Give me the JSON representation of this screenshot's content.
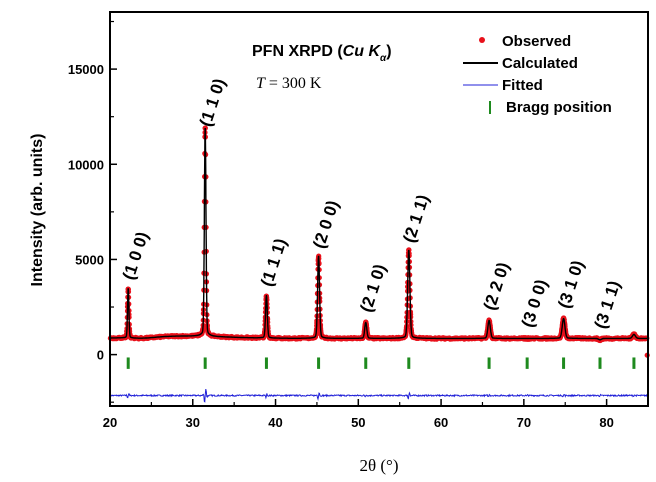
{
  "chart_data": {
    "type": "scatter",
    "title": "PFN XRPD (Cu Kα)",
    "title_main": "PFN XRPD (",
    "title_cu": "Cu K",
    "title_sub": "α",
    "title_close": ")",
    "annotation": "T = 300 K",
    "annotation_T": "T",
    "annotation_rest": " = 300 K",
    "xlabel": "2θ (°)",
    "ylabel": "Intensity (arb. units)",
    "xlim": [
      20,
      85
    ],
    "ylim": [
      -2700,
      18000
    ],
    "xticks": [
      20,
      30,
      40,
      50,
      60,
      70,
      80
    ],
    "yticks": [
      0,
      5000,
      10000,
      15000
    ],
    "grid": false,
    "legend_position": "top-right",
    "legend": [
      {
        "label": "Observed",
        "marker": "red-dot"
      },
      {
        "label": "Calculated",
        "marker": "black-line"
      },
      {
        "label": "Fitted",
        "marker": "blue-line"
      },
      {
        "label": "Bragg position",
        "marker": "green-tick"
      }
    ],
    "colors": {
      "observed": "#e8101a",
      "calculated": "#000000",
      "fitted": "#2020d8",
      "bragg": "#1e8a1e"
    },
    "background_level": 850,
    "difference_offset": -2150,
    "peaks": [
      {
        "x": 22.2,
        "intensity": 3350,
        "label": "(1 0 0)"
      },
      {
        "x": 31.5,
        "intensity": 11400,
        "label": "(1 1 0)"
      },
      {
        "x": 38.9,
        "intensity": 3000,
        "label": "(1 1 1)"
      },
      {
        "x": 45.2,
        "intensity": 5000,
        "label": "(2 0 0)"
      },
      {
        "x": 50.9,
        "intensity": 1650,
        "label": "(2 1 0)"
      },
      {
        "x": 56.1,
        "intensity": 5300,
        "label": "(2 1 1)"
      },
      {
        "x": 65.8,
        "intensity": 1750,
        "label": "(2 2 0)"
      },
      {
        "x": 70.4,
        "intensity": 850,
        "label": "(3 0 0)"
      },
      {
        "x": 74.8,
        "intensity": 1850,
        "label": "(3 1 0)"
      },
      {
        "x": 79.2,
        "intensity": 780,
        "label": "(3 1 1)"
      },
      {
        "x": 83.3,
        "intensity": 1050,
        "label": ""
      }
    ],
    "bragg_positions": [
      22.2,
      31.5,
      38.9,
      45.2,
      50.9,
      56.1,
      65.8,
      70.4,
      74.8,
      79.2,
      83.3
    ]
  }
}
